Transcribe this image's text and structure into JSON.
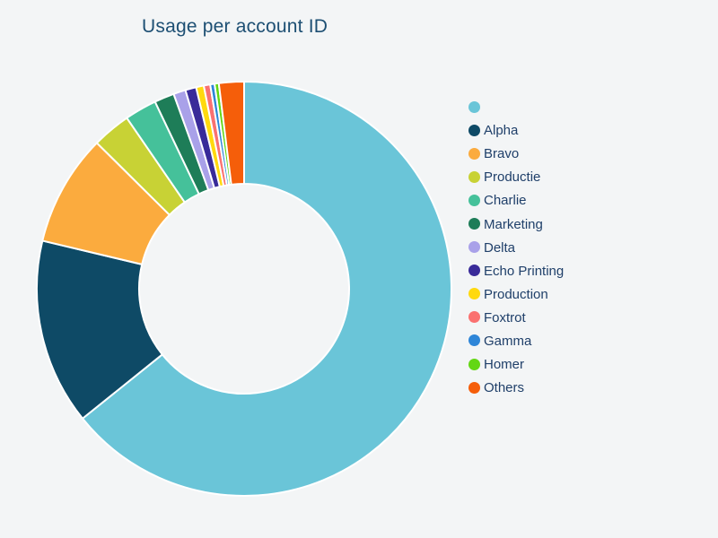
{
  "page": {
    "background_color": "#F3F5F6"
  },
  "chart_data": {
    "type": "pie",
    "title": "Usage per account ID",
    "title_color": "#1D4F73",
    "hole_ratio": 0.51,
    "direction": "clockwise",
    "start_angle_deg": 0,
    "grid": false,
    "legend_position": "right",
    "legend_text_color": "#20406A",
    "slices": [
      {
        "label": "",
        "value_pct": 64.2,
        "color": "#6AC5D8"
      },
      {
        "label": "Alpha",
        "value_pct": 14.5,
        "color": "#0E4A66"
      },
      {
        "label": "Bravo",
        "value_pct": 8.7,
        "color": "#FBAB3E"
      },
      {
        "label": "Productie",
        "value_pct": 3.0,
        "color": "#C8D235"
      },
      {
        "label": "Charlie",
        "value_pct": 2.5,
        "color": "#45C19A"
      },
      {
        "label": "Marketing",
        "value_pct": 1.55,
        "color": "#1E7D58"
      },
      {
        "label": "Delta",
        "value_pct": 0.95,
        "color": "#A9A1E9"
      },
      {
        "label": "Echo Printing",
        "value_pct": 0.85,
        "color": "#392B99"
      },
      {
        "label": "Production",
        "value_pct": 0.6,
        "color": "#FFD90E"
      },
      {
        "label": "Foxtrot",
        "value_pct": 0.5,
        "color": "#FA7170"
      },
      {
        "label": "Gamma",
        "value_pct": 0.34,
        "color": "#2E86D8"
      },
      {
        "label": "Homer",
        "value_pct": 0.33,
        "color": "#63D714"
      },
      {
        "label": "Others",
        "value_pct": 1.95,
        "color": "#F55E0A"
      }
    ]
  }
}
